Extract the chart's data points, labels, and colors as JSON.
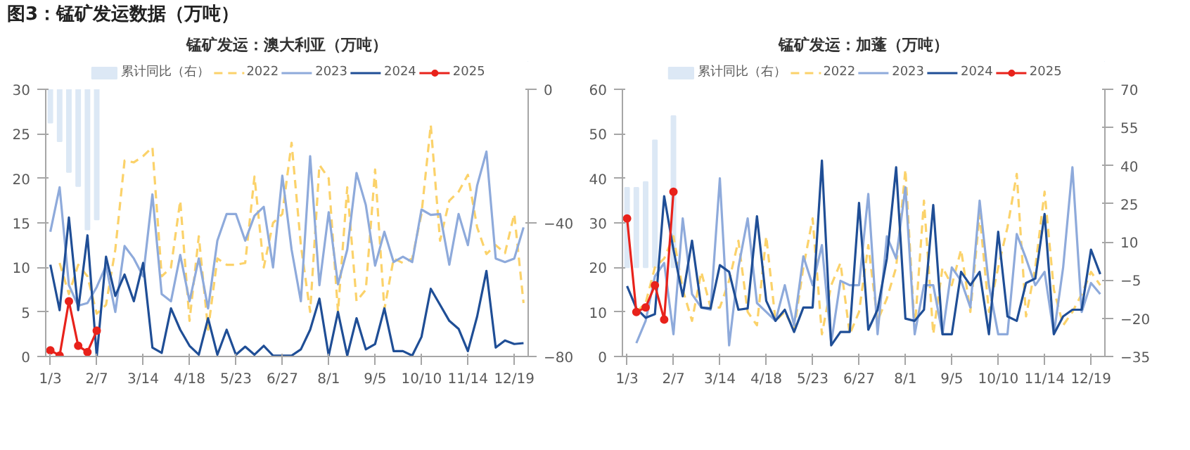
{
  "chart_data": [
    {
      "type": "line",
      "title": "锰矿发运：澳大利亚（万吨）",
      "annotations": [
        "图3：锰矿发运数据（万吨）"
      ],
      "categories": [
        "1/3",
        null,
        null,
        null,
        null,
        "2/7",
        null,
        null,
        null,
        null,
        "3/14",
        null,
        null,
        null,
        null,
        "4/18",
        null,
        null,
        null,
        null,
        "5/23",
        null,
        null,
        null,
        null,
        "6/27",
        null,
        null,
        null,
        null,
        "8/1",
        null,
        null,
        null,
        null,
        "9/5",
        null,
        null,
        null,
        null,
        "10/10",
        null,
        null,
        null,
        null,
        "11/14",
        null,
        null,
        null,
        null,
        "12/19",
        null
      ],
      "series": [
        {
          "name": "累计同比（右）",
          "type": "bar",
          "axis": "y2",
          "color": "#dce8f5",
          "values": [
            -10,
            -15.6,
            -24.8,
            -29,
            -42,
            -39,
            null,
            null,
            null,
            null,
            null,
            null,
            null,
            null,
            null,
            null,
            null,
            null,
            null,
            null,
            null,
            null,
            null,
            null,
            null,
            null,
            null,
            null,
            null,
            null,
            null,
            null,
            null,
            null,
            null,
            null,
            null,
            null,
            null,
            null,
            null,
            null,
            null,
            null,
            null,
            null,
            null,
            null,
            null,
            null,
            null,
            null
          ]
        },
        {
          "name": "2022",
          "color": "#fbd26a",
          "line_style": "dashed",
          "values": [
            null,
            10.5,
            7,
            10.3,
            9,
            4.8,
            5.8,
            12,
            22,
            21.8,
            22.5,
            23.5,
            9,
            10,
            17.5,
            4,
            13.5,
            3,
            11,
            10.3,
            10.3,
            10.5,
            20.2,
            10,
            15,
            16,
            24,
            12.5,
            5,
            21.5,
            20,
            5,
            19,
            6.2,
            7.5,
            21,
            5.3,
            11,
            10.5,
            11,
            16,
            26,
            13,
            17.5,
            18.5,
            20.4,
            14.5,
            11.5,
            12.5,
            11.6,
            16,
            6
          ]
        },
        {
          "name": "2023",
          "color": "#8eaadb",
          "values": [
            14,
            19,
            8,
            5.7,
            6,
            7.8,
            10.2,
            5,
            12.4,
            11,
            9,
            18.2,
            7,
            6.2,
            11.4,
            6.2,
            11,
            5.4,
            13,
            16,
            16,
            13,
            15.8,
            16.8,
            10,
            20.3,
            12,
            6.2,
            22.5,
            8,
            16.2,
            8.1,
            12,
            20.6,
            17,
            10.2,
            14,
            10.6,
            11.2,
            10.6,
            16.5,
            15.9,
            16,
            10.3,
            16,
            12.5,
            19.2,
            23,
            11,
            10.6,
            11,
            14.5
          ]
        },
        {
          "name": "2024",
          "color": "#1f4e96",
          "values": [
            10.3,
            5.2,
            15.6,
            5.2,
            13.6,
            0,
            11.2,
            6.8,
            9.2,
            6.2,
            10.5,
            1,
            0.4,
            5.4,
            3,
            1.2,
            0.2,
            4.3,
            0.2,
            3,
            0.2,
            1.1,
            0.2,
            1.2,
            0.1,
            0.1,
            0.1,
            0.8,
            3,
            6.5,
            0.1,
            5,
            0.1,
            4.3,
            0.8,
            1.4,
            5.4,
            0.6,
            0.6,
            0.1,
            2.2,
            7.6,
            5.8,
            4,
            3.1,
            0.6,
            4.5,
            9.6,
            1,
            1.8,
            1.4,
            1.5
          ]
        },
        {
          "name": "2025",
          "color": "#e8221b",
          "marker": "circle",
          "values": [
            0.7,
            0.1,
            6.2,
            1.2,
            0.5,
            2.9,
            null,
            null,
            null,
            null,
            null,
            null,
            null,
            null,
            null,
            null,
            null,
            null,
            null,
            null,
            null,
            null,
            null,
            null,
            null,
            null,
            null,
            null,
            null,
            null,
            null,
            null,
            null,
            null,
            null,
            null,
            null,
            null,
            null,
            null,
            null,
            null,
            null,
            null,
            null,
            null,
            null,
            null,
            null,
            null,
            null,
            null
          ]
        }
      ],
      "ylim": [
        0,
        30
      ],
      "yticks": [
        0,
        5,
        10,
        15,
        20,
        25,
        30
      ],
      "y2lim": [
        -80,
        0
      ],
      "y2ticks": [
        -80,
        -40,
        0
      ],
      "legend": "top",
      "grid": false
    },
    {
      "type": "line",
      "title": "锰矿发运：加蓬（万吨）",
      "categories": [
        "1/3",
        null,
        null,
        null,
        null,
        "2/7",
        null,
        null,
        null,
        null,
        "3/14",
        null,
        null,
        null,
        null,
        "4/18",
        null,
        null,
        null,
        null,
        "5/23",
        null,
        null,
        null,
        null,
        "6/27",
        null,
        null,
        null,
        null,
        "8/1",
        null,
        null,
        null,
        null,
        "9/5",
        null,
        null,
        null,
        null,
        "10/10",
        null,
        null,
        null,
        null,
        "11/14",
        null,
        null,
        null,
        null,
        "12/19",
        null
      ],
      "series": [
        {
          "name": "累计同比（右）",
          "type": "bar",
          "axis": "y2",
          "color": "#dce8f5",
          "values": [
            31.3,
            31.3,
            33.6,
            50,
            null,
            59.5,
            null,
            null,
            null,
            null,
            null,
            null,
            null,
            null,
            null,
            null,
            null,
            null,
            null,
            null,
            null,
            null,
            null,
            null,
            null,
            null,
            null,
            null,
            null,
            null,
            null,
            null,
            null,
            null,
            null,
            null,
            null,
            null,
            null,
            null,
            null,
            null,
            null,
            null,
            null,
            null,
            null,
            null,
            null,
            null,
            null,
            null
          ]
        },
        {
          "name": "2022",
          "color": "#fbd26a",
          "line_style": "dashed",
          "values": [
            null,
            10,
            12,
            20,
            22,
            27,
            15,
            8,
            19,
            11,
            11,
            17,
            26,
            10,
            7,
            27,
            8,
            10,
            6,
            20,
            31,
            5,
            16,
            21,
            5,
            10,
            25,
            8,
            13,
            20,
            42,
            6,
            35,
            5,
            20,
            16,
            24,
            10,
            32,
            10,
            20,
            29,
            41,
            9,
            20,
            37,
            15,
            7,
            10,
            14,
            19,
            16
          ]
        },
        {
          "name": "2023",
          "color": "#8eaadb",
          "values": [
            null,
            3,
            8,
            18,
            21,
            5,
            31,
            14,
            11,
            10.5,
            40,
            2.5,
            20,
            31,
            12,
            10,
            8,
            16,
            7,
            22.5,
            16,
            25,
            3,
            17,
            16,
            16,
            36.5,
            5,
            27,
            22,
            38,
            5,
            16,
            16,
            5,
            20,
            17,
            11,
            35,
            16,
            5,
            5,
            27.5,
            22,
            16,
            19,
            5,
            20,
            42.5,
            10,
            16.5,
            14
          ]
        },
        {
          "name": "2024",
          "color": "#1f4e96",
          "values": [
            15.8,
            10.8,
            8.7,
            9.5,
            36,
            24,
            13.5,
            26,
            11,
            10.8,
            20.5,
            19,
            10.5,
            10.8,
            31.5,
            12.5,
            8,
            10.5,
            5.5,
            11,
            11,
            44,
            2.5,
            5.5,
            5.5,
            34.5,
            6,
            10.5,
            22,
            42.5,
            8.5,
            8,
            10.5,
            34,
            5,
            5,
            19,
            16,
            19,
            5,
            28,
            9,
            8,
            16.5,
            17.5,
            32,
            5,
            9,
            10.5,
            10.5,
            24,
            18.5
          ]
        },
        {
          "name": "2025",
          "color": "#e8221b",
          "marker": "circle",
          "values": [
            31,
            10,
            11,
            16,
            8.3,
            37,
            null,
            null,
            null,
            null,
            null,
            null,
            null,
            null,
            null,
            null,
            null,
            null,
            null,
            null,
            null,
            null,
            null,
            null,
            null,
            null,
            null,
            null,
            null,
            null,
            null,
            null,
            null,
            null,
            null,
            null,
            null,
            null,
            null,
            null,
            null,
            null,
            null,
            null,
            null,
            null,
            null,
            null,
            null,
            null,
            null,
            null
          ]
        }
      ],
      "ylim": [
        0,
        60
      ],
      "yticks": [
        0,
        10,
        20,
        30,
        40,
        50,
        60
      ],
      "y2lim": [
        -35,
        70
      ],
      "y2ticks": [
        -35,
        -20,
        -5,
        10,
        25,
        40,
        55,
        70
      ],
      "legend": "top",
      "grid": false
    }
  ]
}
